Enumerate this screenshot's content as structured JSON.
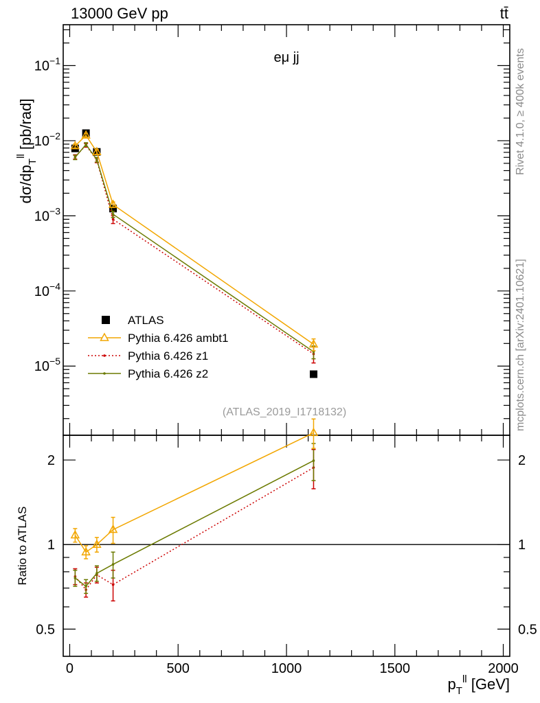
{
  "header": {
    "left": "13000 GeV pp",
    "right": "tt̄",
    "side_upper": "Rivet 4.1.0, ≥ 400k events",
    "side_lower": "mcplots.cern.ch [arXiv:2401.10621]",
    "analysis": "(ATLAS_2019_I1718132)",
    "channel": "eμ jj"
  },
  "colors": {
    "ambt1": "#f2a600",
    "z1": "#cc0000",
    "z2": "#6b7a00",
    "data": "#000000"
  },
  "chart_data": [
    {
      "type": "line",
      "panel": "main",
      "ylabel": "dσ/dp_T^ll [pb/rad]",
      "yscale": "log",
      "ylim": [
        1.2e-06,
        0.35
      ],
      "xlim": [
        -30,
        2030
      ],
      "yticks": [
        {
          "value": 1e-05,
          "label": "10^-5"
        },
        {
          "value": 0.0001,
          "label": "10^-4"
        },
        {
          "value": 0.001,
          "label": "10^-3"
        },
        {
          "value": 0.01,
          "label": "10^-2"
        },
        {
          "value": 0.1,
          "label": "10^-1"
        }
      ],
      "x": [
        25,
        75,
        125,
        200,
        1125
      ],
      "series": [
        {
          "name": "ATLAS",
          "key": "data",
          "values": [
            0.0079,
            0.0126,
            0.0071,
            0.00125,
            7.8e-06
          ]
        },
        {
          "name": "Pythia 6.426 ambt1",
          "key": "ambt1",
          "values": [
            0.0085,
            0.0118,
            0.0071,
            0.00141,
            1.95e-05
          ],
          "err": [
            0.0005,
            0.0007,
            0.0005,
            0.00012,
            3.5e-06
          ]
        },
        {
          "name": "Pythia 6.426 z1",
          "key": "z1",
          "values": [
            0.0061,
            0.0087,
            0.0055,
            0.0009,
            1.45e-05
          ],
          "err": [
            0.0004,
            0.0005,
            0.0004,
            0.00011,
            3.5e-06
          ]
        },
        {
          "name": "Pythia 6.426 z2",
          "key": "z2",
          "values": [
            0.006,
            0.0089,
            0.0056,
            0.00105,
            1.55e-05
          ],
          "err": [
            0.0004,
            0.0005,
            0.0004,
            0.0001,
            3e-06
          ]
        }
      ]
    },
    {
      "type": "line",
      "panel": "ratio",
      "ylabel": "Ratio to ATLAS",
      "xlabel": "p_T^ll [GeV]",
      "yscale": "log",
      "ylim": [
        0.4,
        2.45
      ],
      "yticks": [
        {
          "value": 0.5,
          "label": "0.5"
        },
        {
          "value": 1,
          "label": "1"
        },
        {
          "value": 2,
          "label": "2"
        }
      ],
      "xticks": [
        0,
        500,
        1000,
        1500,
        2000
      ],
      "x": [
        25,
        75,
        125,
        200,
        1125
      ],
      "series": [
        {
          "name": "Pythia 6.426 ambt1",
          "key": "ambt1",
          "values": [
            1.08,
            0.94,
            1.0,
            1.13,
            2.5
          ],
          "err": [
            0.06,
            0.05,
            0.06,
            0.12,
            0.3
          ]
        },
        {
          "name": "Pythia 6.426 z1",
          "key": "z1",
          "values": [
            0.77,
            0.69,
            0.78,
            0.72,
            1.88
          ],
          "err": [
            0.05,
            0.04,
            0.05,
            0.09,
            0.3
          ]
        },
        {
          "name": "Pythia 6.426 z2",
          "key": "z2",
          "values": [
            0.76,
            0.71,
            0.79,
            0.85,
            1.99
          ],
          "err": [
            0.05,
            0.04,
            0.05,
            0.09,
            0.3
          ]
        }
      ]
    }
  ]
}
